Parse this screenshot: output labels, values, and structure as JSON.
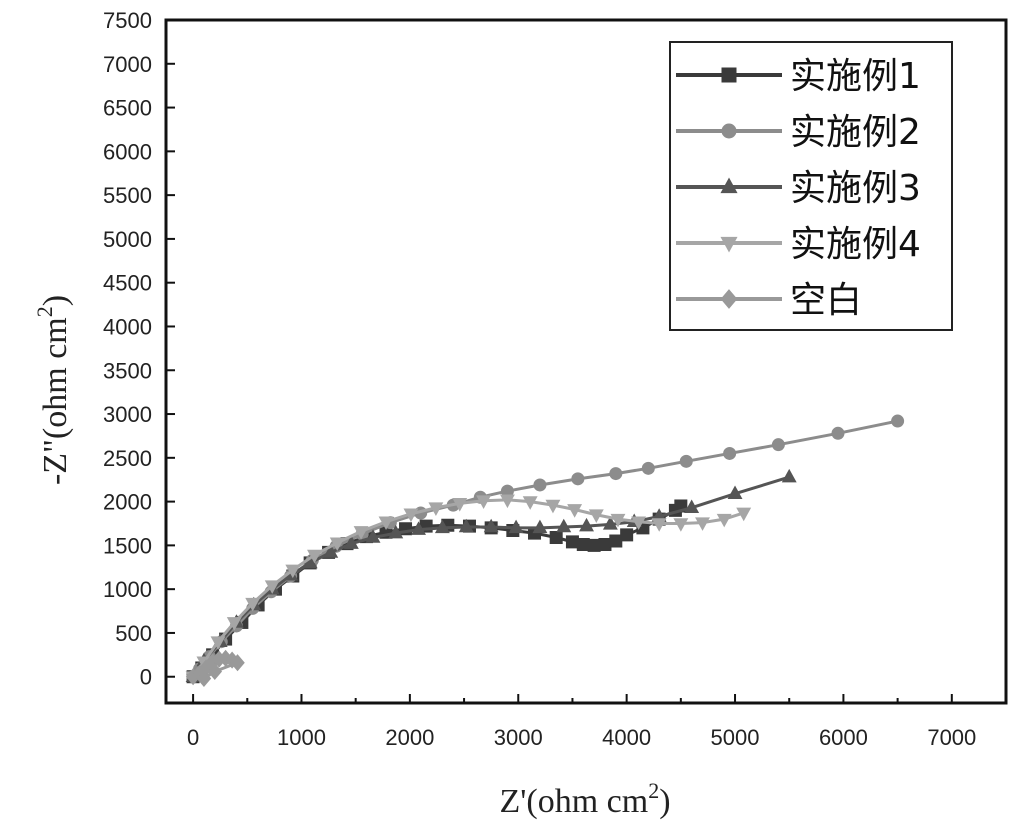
{
  "chart_data": {
    "type": "scatter",
    "xlabel": "Z'(ohm cm",
    "xlabel_sup": "2",
    "xlabel_end": ")",
    "ylabel": "-Z\"(ohm cm",
    "ylabel_sup": "2",
    "ylabel_end": ")",
    "xlim": [
      -250,
      7500
    ],
    "ylim": [
      -300,
      7500
    ],
    "xticks": [
      0,
      1000,
      2000,
      3000,
      4000,
      5000,
      6000,
      7000
    ],
    "yticks": [
      0,
      500,
      1000,
      1500,
      2000,
      2500,
      3000,
      3500,
      4000,
      4500,
      5000,
      5500,
      6000,
      6500,
      7000,
      7500
    ],
    "legend_position": "top-right",
    "series": [
      {
        "name": "实施例1",
        "marker": "square",
        "color": "#3a3a3a",
        "x": [
          0,
          80,
          180,
          300,
          450,
          600,
          760,
          920,
          1080,
          1250,
          1420,
          1600,
          1780,
          1960,
          2150,
          2350,
          2550,
          2750,
          2950,
          3150,
          3350,
          3500,
          3600,
          3700,
          3800,
          3900,
          4000,
          4150,
          4300,
          4450,
          4500
        ],
        "y": [
          0,
          100,
          250,
          430,
          620,
          820,
          1000,
          1150,
          1300,
          1420,
          1520,
          1600,
          1650,
          1690,
          1720,
          1730,
          1720,
          1700,
          1670,
          1640,
          1590,
          1540,
          1510,
          1500,
          1510,
          1550,
          1620,
          1700,
          1800,
          1900,
          1950
        ]
      },
      {
        "name": "实施例2",
        "marker": "circle",
        "color": "#8c8c8c",
        "x": [
          0,
          60,
          150,
          260,
          400,
          550,
          720,
          900,
          1100,
          1320,
          1560,
          1820,
          2100,
          2400,
          2650,
          2900,
          3200,
          3550,
          3900,
          4200,
          4550,
          4950,
          5400,
          5950,
          6500
        ],
        "y": [
          0,
          90,
          230,
          400,
          580,
          780,
          970,
          1150,
          1330,
          1490,
          1630,
          1760,
          1870,
          1960,
          2050,
          2120,
          2190,
          2260,
          2320,
          2380,
          2460,
          2550,
          2650,
          2780,
          2920
        ]
      },
      {
        "name": "实施例3",
        "marker": "triangle-up",
        "color": "#555555",
        "x": [
          0,
          100,
          250,
          400,
          560,
          730,
          900,
          1080,
          1270,
          1460,
          1660,
          1870,
          2080,
          2300,
          2520,
          2750,
          2980,
          3200,
          3420,
          3630,
          3850,
          4070,
          4300,
          4600,
          5000,
          5500
        ],
        "y": [
          0,
          180,
          400,
          620,
          820,
          1000,
          1160,
          1300,
          1420,
          1520,
          1590,
          1640,
          1680,
          1700,
          1710,
          1710,
          1700,
          1700,
          1710,
          1720,
          1740,
          1770,
          1830,
          1930,
          2090,
          2280
        ]
      },
      {
        "name": "实施例4",
        "marker": "triangle-down",
        "color": "#a6a6a6",
        "x": [
          0,
          100,
          230,
          380,
          550,
          730,
          920,
          1120,
          1330,
          1550,
          1780,
          2010,
          2240,
          2460,
          2680,
          2900,
          3110,
          3320,
          3520,
          3720,
          3920,
          4110,
          4300,
          4500,
          4700,
          4900,
          5080
        ],
        "y": [
          0,
          170,
          400,
          620,
          840,
          1040,
          1220,
          1390,
          1530,
          1660,
          1770,
          1860,
          1930,
          1980,
          2010,
          2020,
          2000,
          1960,
          1910,
          1850,
          1800,
          1770,
          1750,
          1750,
          1760,
          1800,
          1870
        ]
      },
      {
        "name": "空白",
        "marker": "diamond",
        "color": "#999999",
        "x": [
          0,
          60,
          120,
          180,
          240,
          300,
          360,
          410,
          200,
          100
        ],
        "y": [
          0,
          40,
          100,
          170,
          200,
          210,
          190,
          160,
          60,
          -20
        ]
      }
    ]
  }
}
